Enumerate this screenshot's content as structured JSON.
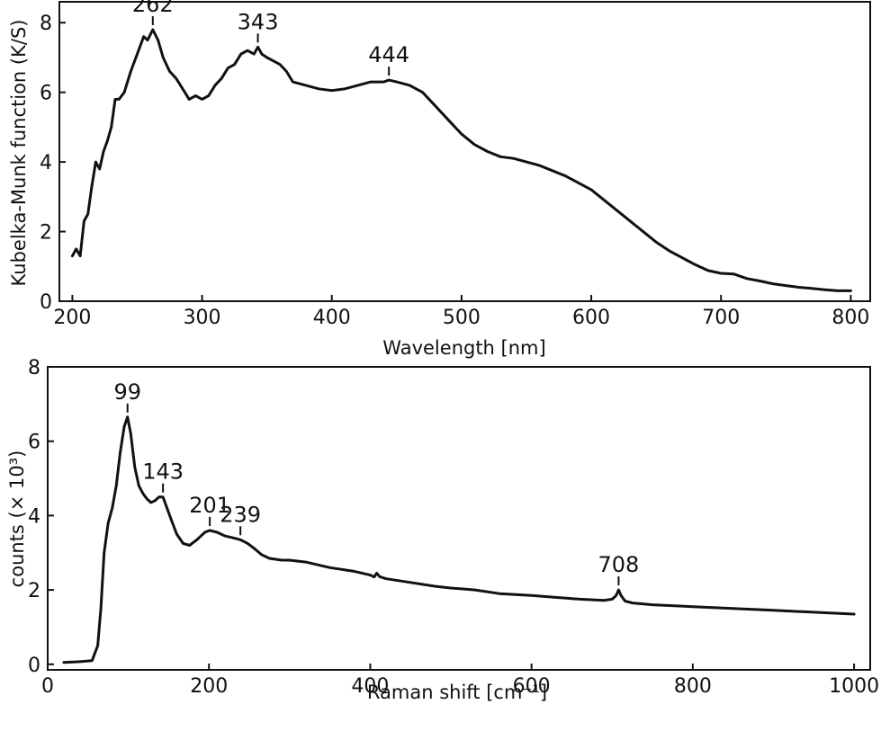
{
  "chart_data": [
    {
      "type": "line",
      "title": "",
      "xlabel": "Wavelength [nm]",
      "ylabel": "Kubelka-Munk function (K/S)",
      "xlim": [
        190,
        815
      ],
      "ylim": [
        0,
        8.6
      ],
      "xticks": [
        200,
        300,
        400,
        500,
        600,
        700,
        800
      ],
      "yticks": [
        0,
        2,
        4,
        6,
        8
      ],
      "grid": false,
      "series": [
        {
          "x": [
            200,
            203,
            206,
            209,
            212,
            215,
            218,
            221,
            224,
            227,
            230,
            233,
            236,
            240,
            245,
            250,
            255,
            258,
            262,
            266,
            270,
            275,
            280,
            285,
            290,
            295,
            300,
            305,
            310,
            315,
            320,
            325,
            330,
            335,
            340,
            343,
            346,
            350,
            355,
            360,
            365,
            370,
            380,
            390,
            400,
            410,
            420,
            430,
            440,
            444,
            450,
            460,
            470,
            480,
            490,
            500,
            510,
            520,
            530,
            540,
            550,
            560,
            570,
            580,
            590,
            600,
            610,
            620,
            630,
            640,
            650,
            660,
            670,
            680,
            690,
            700,
            710,
            720,
            730,
            740,
            750,
            760,
            770,
            780,
            790,
            800
          ],
          "y": [
            1.3,
            1.5,
            1.3,
            2.3,
            2.5,
            3.3,
            4.0,
            3.8,
            4.3,
            4.6,
            5.0,
            5.8,
            5.8,
            6.0,
            6.6,
            7.1,
            7.6,
            7.5,
            7.8,
            7.5,
            7.0,
            6.6,
            6.4,
            6.1,
            5.8,
            5.9,
            5.8,
            5.9,
            6.2,
            6.4,
            6.7,
            6.8,
            7.1,
            7.2,
            7.1,
            7.3,
            7.1,
            7.0,
            6.9,
            6.8,
            6.6,
            6.3,
            6.2,
            6.1,
            6.05,
            6.1,
            6.2,
            6.3,
            6.3,
            6.35,
            6.3,
            6.2,
            6.0,
            5.6,
            5.2,
            4.8,
            4.5,
            4.3,
            4.15,
            4.1,
            4.0,
            3.9,
            3.75,
            3.6,
            3.4,
            3.2,
            2.9,
            2.6,
            2.3,
            2.0,
            1.7,
            1.45,
            1.25,
            1.05,
            0.88,
            0.8,
            0.78,
            0.65,
            0.58,
            0.5,
            0.45,
            0.4,
            0.37,
            0.33,
            0.3,
            0.3
          ]
        }
      ],
      "annotations": [
        {
          "text": "262",
          "x": 262,
          "y": 7.8
        },
        {
          "text": "343",
          "x": 343,
          "y": 7.3
        },
        {
          "text": "444",
          "x": 444,
          "y": 6.35
        }
      ]
    },
    {
      "type": "line",
      "title": "",
      "xlabel": "Raman shift [cm⁻¹]",
      "ylabel": "counts (× 10³)",
      "xlim": [
        0,
        1020
      ],
      "ylim": [
        -0.15,
        8.0
      ],
      "xticks": [
        0,
        200,
        400,
        600,
        800,
        1000
      ],
      "yticks": [
        0,
        2,
        4,
        6,
        8
      ],
      "grid": false,
      "series": [
        {
          "x": [
            20,
            40,
            55,
            62,
            66,
            70,
            75,
            80,
            85,
            90,
            95,
            99,
            103,
            108,
            113,
            118,
            123,
            128,
            133,
            138,
            143,
            148,
            153,
            160,
            168,
            176,
            185,
            195,
            201,
            210,
            220,
            230,
            239,
            248,
            257,
            265,
            275,
            290,
            300,
            320,
            350,
            380,
            400,
            405,
            408,
            412,
            420,
            450,
            480,
            500,
            530,
            560,
            600,
            630,
            660,
            690,
            700,
            705,
            708,
            711,
            716,
            725,
            750,
            800,
            850,
            900,
            950,
            1000
          ],
          "y": [
            0.05,
            0.07,
            0.1,
            0.5,
            1.5,
            3.0,
            3.8,
            4.2,
            4.8,
            5.7,
            6.4,
            6.65,
            6.2,
            5.3,
            4.8,
            4.6,
            4.45,
            4.35,
            4.4,
            4.5,
            4.5,
            4.2,
            3.9,
            3.5,
            3.25,
            3.2,
            3.35,
            3.55,
            3.6,
            3.55,
            3.45,
            3.4,
            3.35,
            3.25,
            3.1,
            2.95,
            2.85,
            2.8,
            2.8,
            2.75,
            2.6,
            2.5,
            2.4,
            2.35,
            2.45,
            2.35,
            2.3,
            2.2,
            2.1,
            2.05,
            2.0,
            1.9,
            1.85,
            1.8,
            1.75,
            1.72,
            1.75,
            1.85,
            2.0,
            1.85,
            1.7,
            1.65,
            1.6,
            1.55,
            1.5,
            1.45,
            1.4,
            1.35
          ]
        }
      ],
      "annotations": [
        {
          "text": "99",
          "x": 99,
          "y": 6.65
        },
        {
          "text": "143",
          "x": 143,
          "y": 4.5
        },
        {
          "text": "201",
          "x": 201,
          "y": 3.6
        },
        {
          "text": "239",
          "x": 239,
          "y": 3.35
        },
        {
          "text": "708",
          "x": 708,
          "y": 2.0
        }
      ]
    }
  ]
}
